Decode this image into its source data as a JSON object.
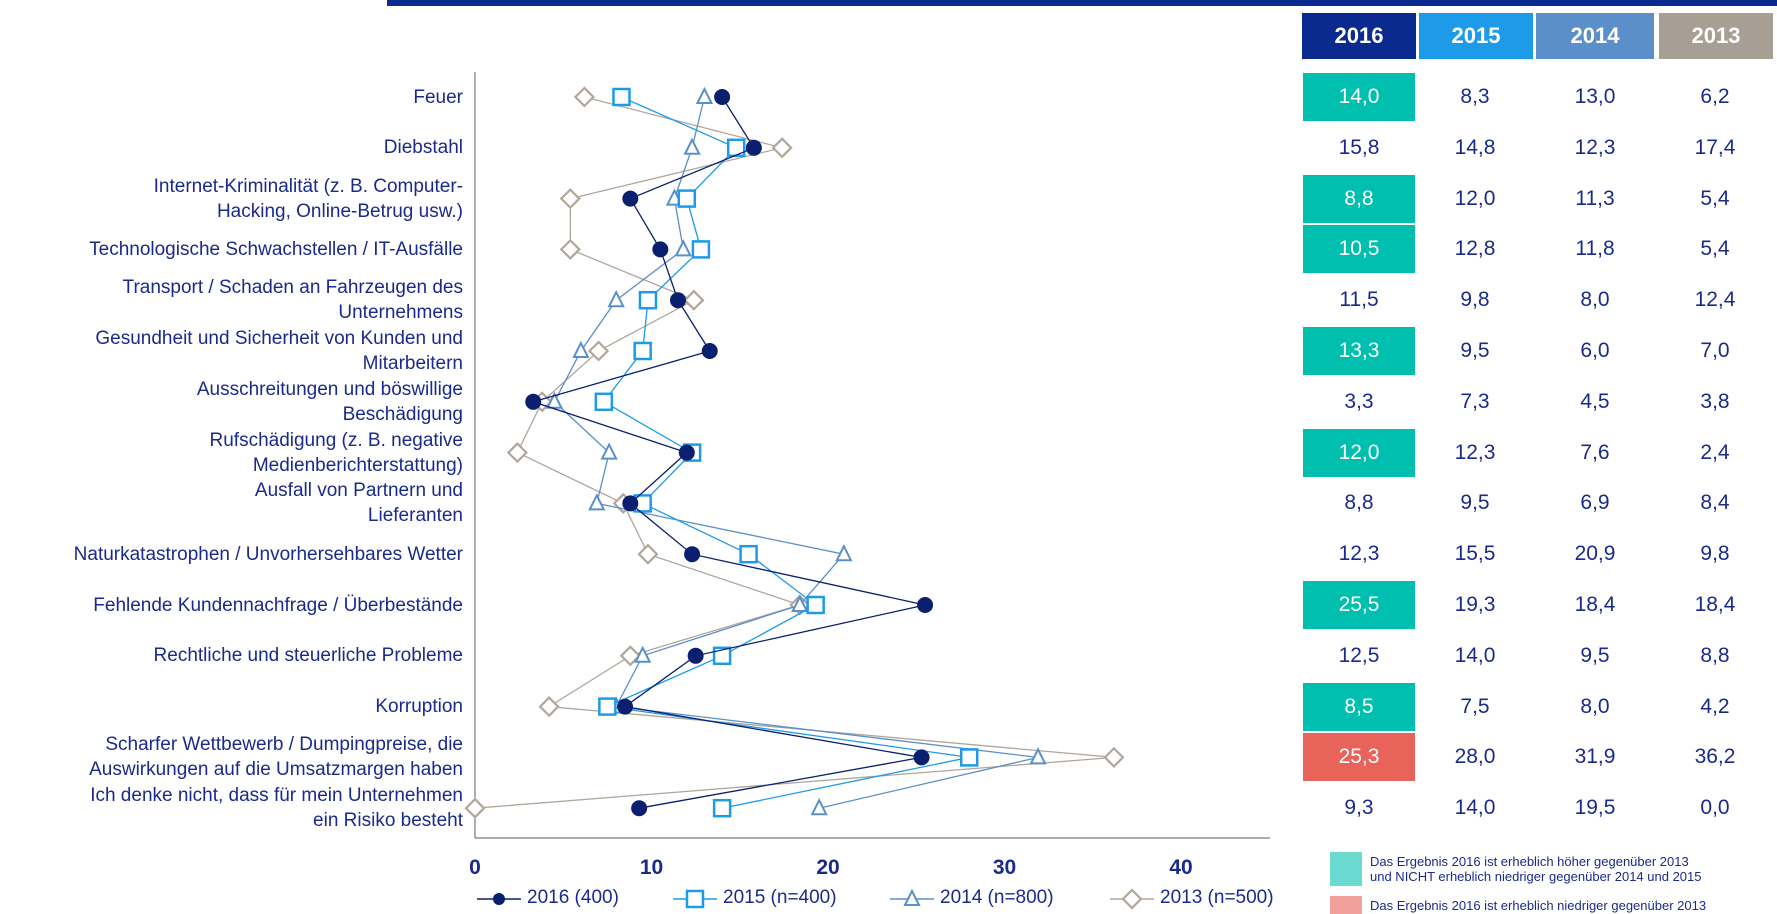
{
  "chart_data": {
    "type": "line",
    "orientation": "horizontal",
    "categories": [
      "Feuer",
      "Diebstahl",
      "Internet-Kriminalität (z. B. Computer-\nHacking, Online-Betrug usw.)",
      "Technologische Schwachstellen / IT-Ausfälle",
      "Transport / Schaden an Fahrzeugen des\nUnternehmens",
      "Gesundheit und Sicherheit von Kunden und\nMitarbeitern",
      "Ausschreitungen und böswillige\nBeschädigung",
      "Rufschädigung (z. B. negative\nMedienberichterstattung)",
      "Ausfall von Partnern und\nLieferanten",
      "Naturkatastrophen / Unvorhersehbares Wetter",
      "Fehlende Kundennachfrage / Überbestände",
      "Rechtliche und steuerliche Probleme",
      "Korruption",
      "Scharfer Wettbewerb / Dumpingpreise, die\nAuswirkungen auf die Umsatzmargen haben",
      "Ich denke nicht, dass für mein Unternehmen\nein Risiko besteht"
    ],
    "series": [
      {
        "name": "2016 (400)",
        "color": "#0a1f6e",
        "marker": "circle",
        "values": [
          14.0,
          15.8,
          8.8,
          10.5,
          11.5,
          13.3,
          3.3,
          12.0,
          8.8,
          12.3,
          25.5,
          12.5,
          8.5,
          25.3,
          9.3
        ]
      },
      {
        "name": "2015 (n=400)",
        "color": "#1e9be8",
        "marker": "square",
        "values": [
          8.3,
          14.8,
          12.0,
          12.8,
          9.8,
          9.5,
          7.3,
          12.3,
          9.5,
          15.5,
          19.3,
          14.0,
          7.5,
          28.0,
          14.0
        ]
      },
      {
        "name": "2014 (n=800)",
        "color": "#5b8fc9",
        "marker": "triangle",
        "values": [
          13.0,
          12.3,
          11.3,
          11.8,
          8.0,
          6.0,
          4.5,
          7.6,
          6.9,
          20.9,
          18.4,
          9.5,
          8.0,
          31.9,
          19.5
        ]
      },
      {
        "name": "2013 (n=500)",
        "color": "#b0a69a",
        "marker": "diamond",
        "values": [
          6.2,
          17.4,
          5.4,
          5.4,
          12.4,
          7.0,
          3.8,
          2.4,
          8.4,
          9.8,
          18.4,
          8.8,
          4.2,
          36.2,
          0.0
        ]
      }
    ],
    "xlim": [
      0,
      45
    ],
    "xticks": [
      "0",
      "10",
      "20",
      "30",
      "40"
    ],
    "grid": false,
    "legend_position": "bottom"
  },
  "table": {
    "headers": [
      {
        "label": "2016",
        "color": "#0a2a8f"
      },
      {
        "label": "2015",
        "color": "#1e9be8"
      },
      {
        "label": "2014",
        "color": "#5b8fc9"
      },
      {
        "label": "2013",
        "color": "#a89f94"
      }
    ],
    "rows": [
      [
        "14,0",
        "8,3",
        "13,0",
        "6,2"
      ],
      [
        "15,8",
        "14,8",
        "12,3",
        "17,4"
      ],
      [
        "8,8",
        "12,0",
        "11,3",
        "5,4"
      ],
      [
        "10,5",
        "12,8",
        "11,8",
        "5,4"
      ],
      [
        "11,5",
        "9,8",
        "8,0",
        "12,4"
      ],
      [
        "13,3",
        "9,5",
        "6,0",
        "7,0"
      ],
      [
        "3,3",
        "7,3",
        "4,5",
        "3,8"
      ],
      [
        "12,0",
        "12,3",
        "7,6",
        "2,4"
      ],
      [
        "8,8",
        "9,5",
        "6,9",
        "8,4"
      ],
      [
        "12,3",
        "15,5",
        "20,9",
        "9,8"
      ],
      [
        "25,5",
        "19,3",
        "18,4",
        "18,4"
      ],
      [
        "12,5",
        "14,0",
        "9,5",
        "8,8"
      ],
      [
        "8,5",
        "7,5",
        "8,0",
        "4,2"
      ],
      [
        "25,3",
        "28,0",
        "31,9",
        "36,2"
      ],
      [
        "9,3",
        "14,0",
        "19,5",
        "0,0"
      ]
    ],
    "highlights": [
      "green",
      null,
      "green",
      "green",
      null,
      "green",
      null,
      "green",
      null,
      null,
      "green",
      null,
      "green",
      "red",
      null
    ],
    "highlight_colors": {
      "green": "#00bfae",
      "red": "#e8635a"
    }
  },
  "notes": [
    {
      "color": "#6ad9cf",
      "text": "Das Ergebnis 2016 ist erheblich höher gegenüber 2013\nund NICHT erheblich niedriger gegenüber 2014 und 2015"
    },
    {
      "color": "#f2a09a",
      "text": "Das Ergebnis 2016 ist erheblich niedriger gegenüber 2013"
    }
  ]
}
